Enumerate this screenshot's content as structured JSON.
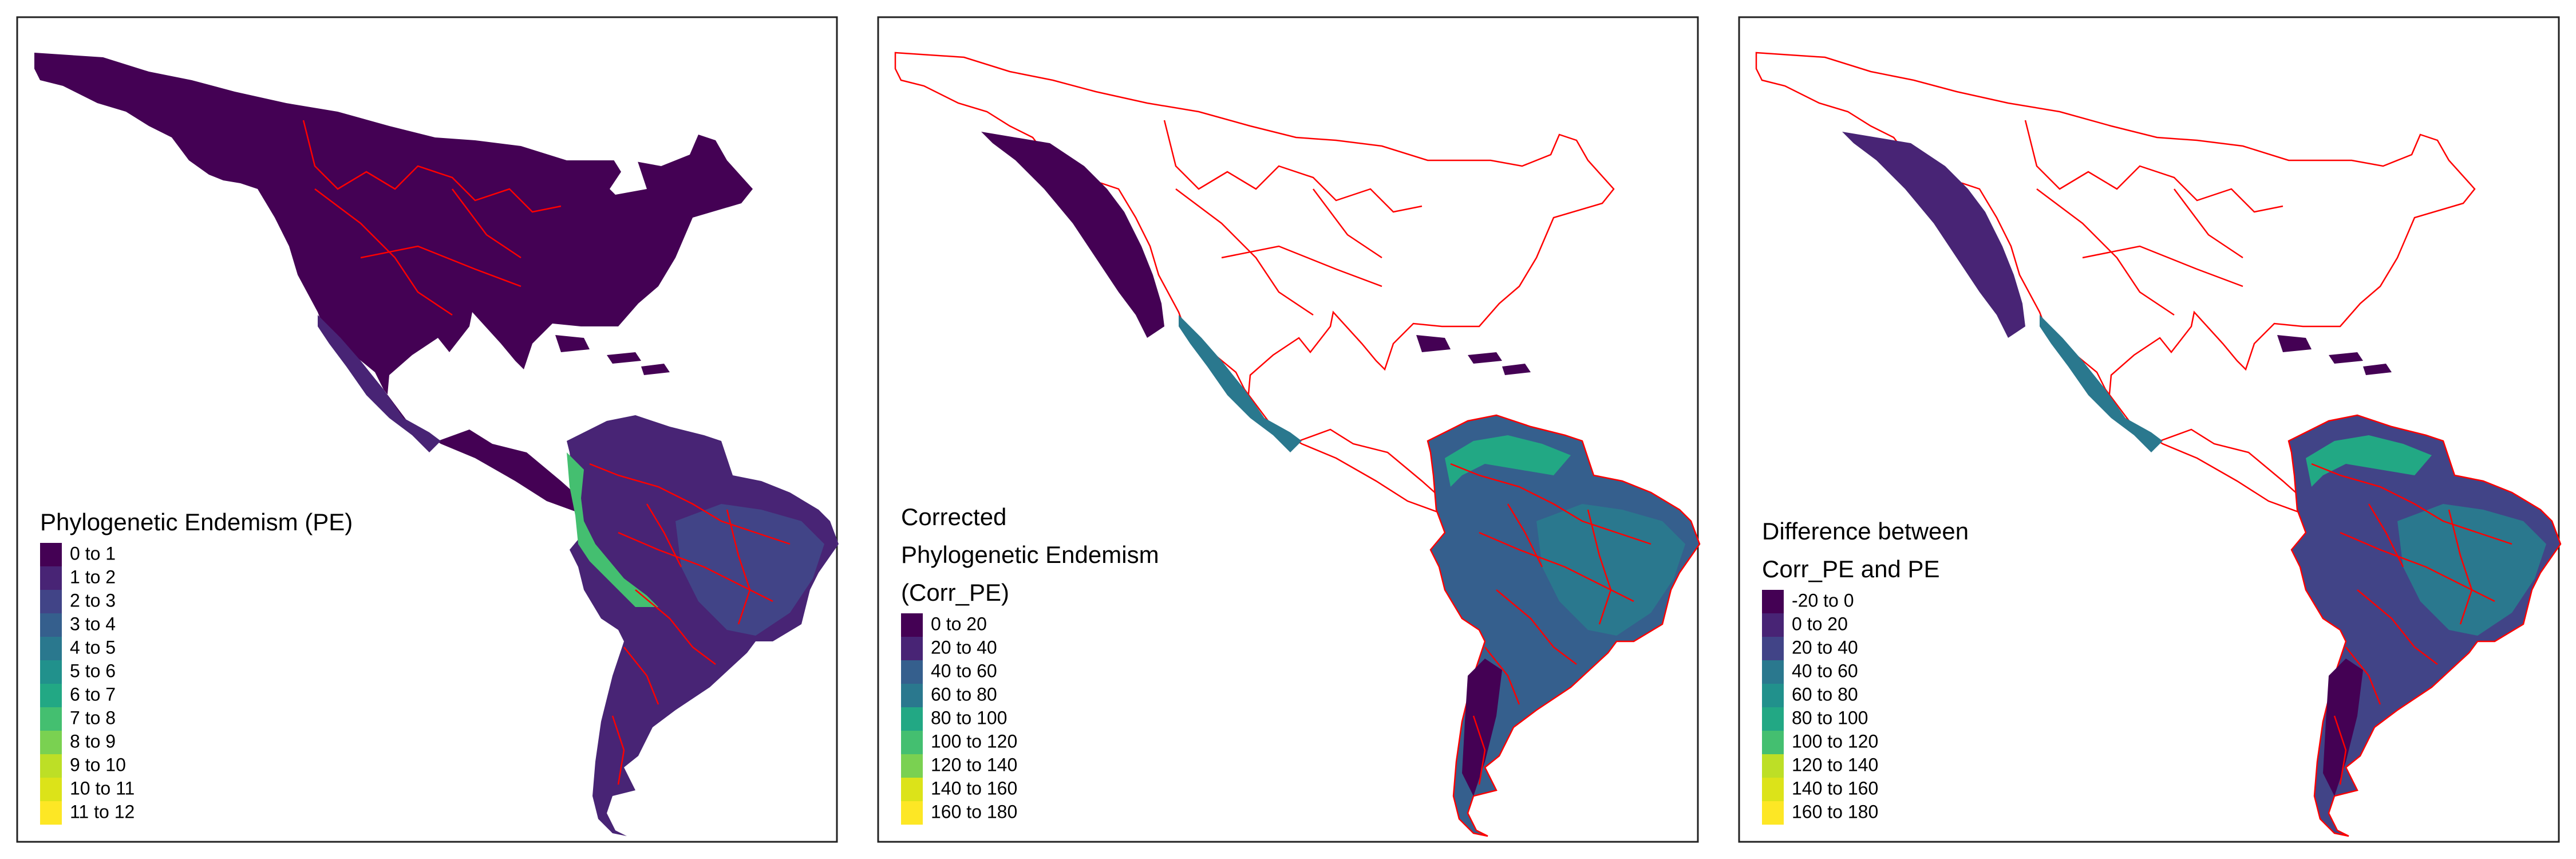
{
  "palette": [
    "#440154",
    "#482475",
    "#414487",
    "#355f8d",
    "#2a788e",
    "#21918c",
    "#22a884",
    "#44bf70",
    "#7ad151",
    "#bddf26",
    "#dce319",
    "#fde725"
  ],
  "boundary_color": "#ff0000",
  "panels": [
    {
      "title_lines": [
        "Phylogenetic Endemism (PE)"
      ],
      "legend": [
        "0 to 1",
        "1 to 2",
        "2 to 3",
        "3 to 4",
        "4 to 5",
        "5 to 6",
        "6 to 7",
        "7 to 8",
        "8 to 9",
        "9 to 10",
        "10 to 11",
        "11 to 12"
      ]
    },
    {
      "title_lines": [
        "Corrected",
        "Phylogenetic Endemism",
        "(Corr_PE)"
      ],
      "legend": [
        "0 to 20",
        "20 to 40",
        "40 to 60",
        "60 to 80",
        "80 to 100",
        "100 to 120",
        "120 to 140",
        "140 to 160",
        "160 to 180"
      ]
    },
    {
      "title_lines": [
        "Difference between",
        "Corr_PE and PE"
      ],
      "legend": [
        "-20 to 0",
        "0 to 20",
        "20 to 40",
        "40 to 60",
        "60 to 80",
        "80 to 100",
        "100 to 120",
        "120 to 140",
        "140 to 160",
        "160 to 180"
      ]
    }
  ]
}
